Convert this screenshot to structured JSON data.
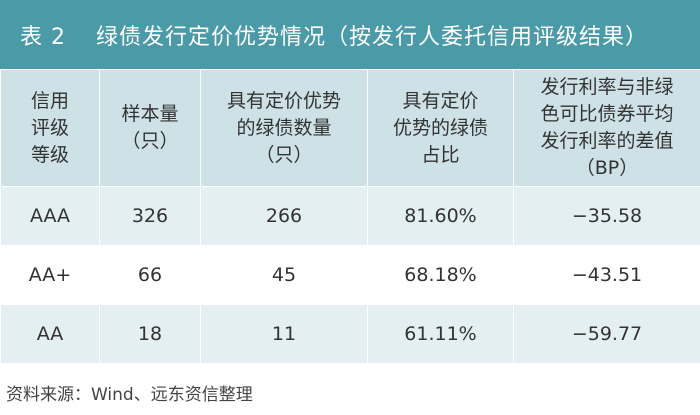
{
  "title": {
    "number": "表 2",
    "text": "绿债发行定价优势情况（按发行人委托信用评级结果）"
  },
  "table": {
    "headers": [
      "信用\n评级\n等级",
      "样本量\n（只）",
      "具有定价优势\n的绿债数量\n（只）",
      "具有定价\n优势的绿债\n占比",
      "发行利率与非绿\n色可比债券平均\n发行利率的差值\n（BP）"
    ],
    "rows": [
      [
        "AAA",
        "326",
        "266",
        "81.60%",
        "−35.58"
      ],
      [
        "AA+",
        "66",
        "45",
        "68.18%",
        "−43.51"
      ],
      [
        "AA",
        "18",
        "11",
        "61.11%",
        "−59.77"
      ]
    ]
  },
  "source": "资料来源：Wind、远东资信整理",
  "colors": {
    "title_bg": "#4a9aa8",
    "header_bg": "#cde1e6",
    "row_shade": "#e4eff2"
  }
}
